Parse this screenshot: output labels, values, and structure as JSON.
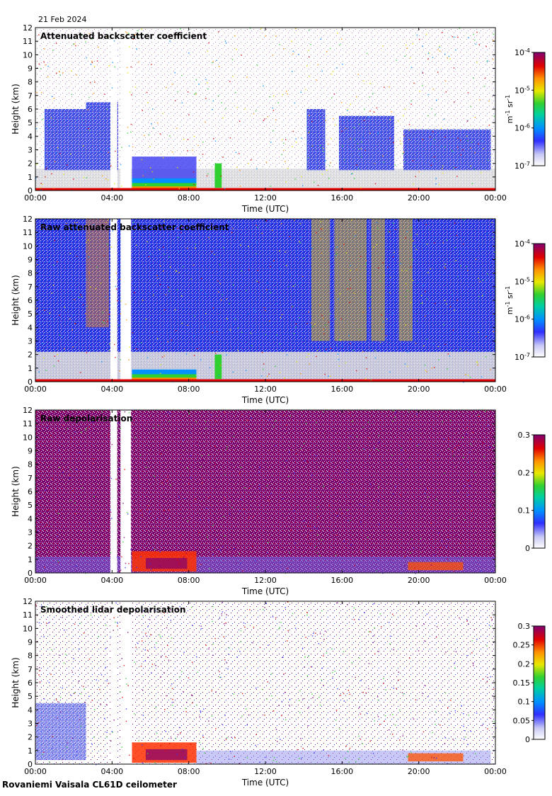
{
  "date": "21 Feb 2024",
  "footer": "Rovaniemi Vaisala CL61D ceilometer",
  "chart_data": [
    {
      "type": "heatmap",
      "title": "Attenuated backscatter coefficient",
      "xlabel": "Time (UTC)",
      "ylabel": "Height (km)",
      "x_ticks": [
        "00:00",
        "04:00",
        "08:00",
        "12:00",
        "16:00",
        "20:00",
        "00:00"
      ],
      "y_ticks": [
        "0",
        "1",
        "2",
        "3",
        "4",
        "5",
        "6",
        "7",
        "8",
        "9",
        "10",
        "11",
        "12"
      ],
      "ylim": [
        0,
        12
      ],
      "colorbar": {
        "scale": "log",
        "unit": "m-1 sr-1",
        "tick_labels": [
          {
            "base": "10",
            "exp": "-4"
          },
          {
            "base": "10",
            "exp": "-5"
          },
          {
            "base": "10",
            "exp": "-6"
          },
          {
            "base": "10",
            "exp": "-7"
          }
        ]
      }
    },
    {
      "type": "heatmap",
      "title": "Raw attenuated backscatter coefficient",
      "xlabel": "Time (UTC)",
      "ylabel": "Height (km)",
      "x_ticks": [
        "00:00",
        "04:00",
        "08:00",
        "12:00",
        "16:00",
        "20:00",
        "00:00"
      ],
      "y_ticks": [
        "0",
        "1",
        "2",
        "3",
        "4",
        "5",
        "6",
        "7",
        "8",
        "9",
        "10",
        "11",
        "12"
      ],
      "ylim": [
        0,
        12
      ],
      "colorbar": {
        "scale": "log",
        "unit": "m-1 sr-1",
        "tick_labels": [
          {
            "base": "10",
            "exp": "-4"
          },
          {
            "base": "10",
            "exp": "-5"
          },
          {
            "base": "10",
            "exp": "-6"
          },
          {
            "base": "10",
            "exp": "-7"
          }
        ]
      }
    },
    {
      "type": "heatmap",
      "title": "Raw depolarisation",
      "xlabel": "Time (UTC)",
      "ylabel": "Height (km)",
      "x_ticks": [
        "00:00",
        "04:00",
        "08:00",
        "12:00",
        "16:00",
        "20:00",
        "00:00"
      ],
      "y_ticks": [
        "0",
        "1",
        "2",
        "3",
        "4",
        "5",
        "6",
        "7",
        "8",
        "9",
        "10",
        "11",
        "12"
      ],
      "ylim": [
        0,
        12
      ],
      "colorbar": {
        "scale": "linear",
        "unit": "",
        "tick_labels": [
          "0.3",
          "0.2",
          "0.1",
          "0"
        ]
      }
    },
    {
      "type": "heatmap",
      "title": "Smoothed lidar depolarisation",
      "xlabel": "Time (UTC)",
      "ylabel": "Height (km)",
      "x_ticks": [
        "00:00",
        "04:00",
        "08:00",
        "12:00",
        "16:00",
        "20:00",
        "00:00"
      ],
      "y_ticks": [
        "0",
        "1",
        "2",
        "3",
        "4",
        "5",
        "6",
        "7",
        "8",
        "9",
        "10",
        "11",
        "12"
      ],
      "ylim": [
        0,
        12
      ],
      "colorbar": {
        "scale": "linear",
        "unit": "",
        "tick_labels": [
          "0.3",
          "0.25",
          "0.2",
          "0.15",
          "0.1",
          "0.05",
          "0"
        ]
      }
    }
  ]
}
